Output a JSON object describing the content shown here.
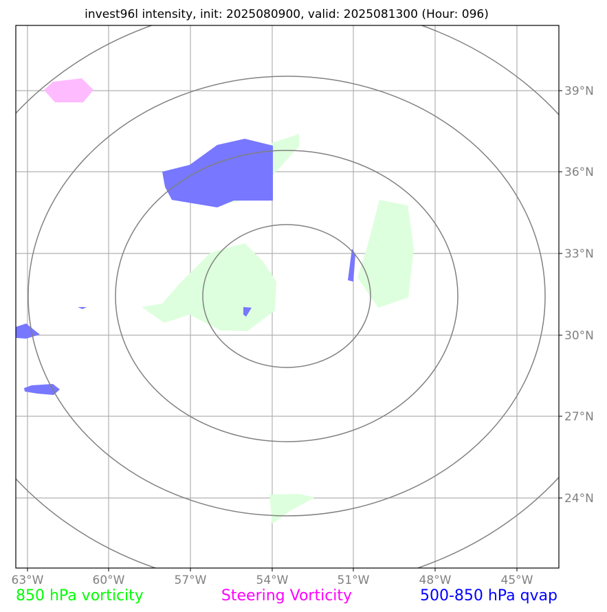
{
  "title": "invest96l intensity, init: 2025080900, valid: 2025081300 (Hour: 096)",
  "longitude_labels": [
    "63°W",
    "60°W",
    "57°W",
    "54°W",
    "51°W",
    "48°W",
    "45°W"
  ],
  "latitude_labels": [
    "39°N",
    "36°N",
    "33°N",
    "30°N",
    "27°N",
    "24°N"
  ],
  "legend": [
    {
      "label": "850 hPa vorticity",
      "color": "#00ff00"
    },
    {
      "label": "Steering Vorticity",
      "color": "#ff00ff"
    },
    {
      "label": "500-850 hPa qvap",
      "color": "#0000ff"
    }
  ],
  "colors": {
    "vorticity_850_fill": "#ddffdd",
    "steering_vorticity_fill": "#ffbbff",
    "qvap_fill": "#7777ff",
    "range_rings": "#808080",
    "gridlines": "#b0b0b0"
  }
}
